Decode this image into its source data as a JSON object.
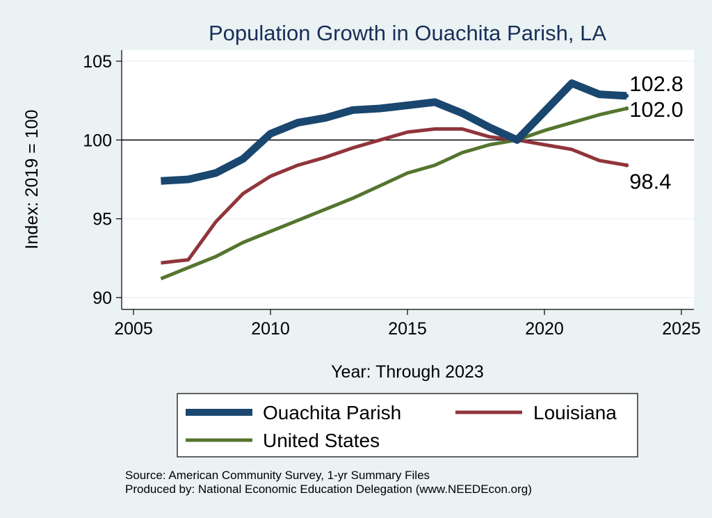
{
  "chart_data": {
    "type": "line",
    "title": "Population Growth in Ouachita Parish, LA",
    "xlabel": "Year: Through 2023",
    "ylabel": "Index: 2019 = 100",
    "xlim": [
      2005,
      2025
    ],
    "ylim": [
      89.5,
      105.5
    ],
    "xticks": [
      2005,
      2010,
      2015,
      2020,
      2025
    ],
    "yticks": [
      90,
      95,
      100,
      105
    ],
    "reference_line": 100,
    "x": [
      2006,
      2007,
      2008,
      2009,
      2010,
      2011,
      2012,
      2013,
      2014,
      2015,
      2016,
      2017,
      2018,
      2019,
      2020,
      2021,
      2022,
      2023
    ],
    "series": [
      {
        "name": "Ouachita Parish",
        "color": "#1a476f",
        "values": [
          97.4,
          97.5,
          97.9,
          98.8,
          100.4,
          101.1,
          101.4,
          101.9,
          102.0,
          102.2,
          102.4,
          101.7,
          100.8,
          100.0,
          101.8,
          103.6,
          102.9,
          102.8
        ],
        "end_label": "102.8"
      },
      {
        "name": "Louisiana",
        "color": "#90353b",
        "values": [
          92.2,
          92.4,
          94.8,
          96.6,
          97.7,
          98.4,
          98.9,
          99.5,
          100.0,
          100.5,
          100.7,
          100.7,
          100.2,
          100.0,
          99.7,
          99.4,
          98.7,
          98.4
        ],
        "end_label": "98.4"
      },
      {
        "name": "United States",
        "color": "#55752f",
        "values": [
          91.2,
          91.9,
          92.6,
          93.5,
          94.2,
          94.9,
          95.6,
          96.3,
          97.1,
          97.9,
          98.4,
          99.2,
          99.7,
          100.0,
          100.6,
          101.1,
          101.6,
          102.0
        ],
        "end_label": "102.0"
      }
    ],
    "legend_position": "bottom"
  },
  "footnotes": {
    "source": "Source: American Community Survey, 1-yr Summary Files",
    "produced_by": "Produced by: National Economic Education Delegation (www.NEEDEcon.org)"
  }
}
